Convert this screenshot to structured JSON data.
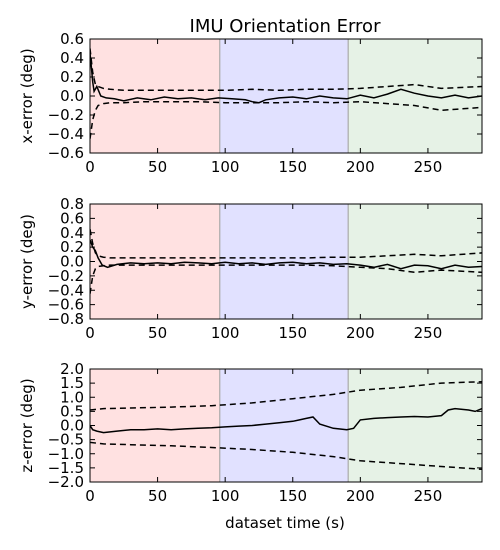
{
  "chart_data": {
    "type": "line",
    "title": "IMU Orientation Error",
    "xlabel": "dataset time (s)",
    "xlim": [
      0,
      290
    ],
    "xticks": [
      0,
      50,
      100,
      150,
      200,
      250
    ],
    "regions": [
      {
        "x0": 0,
        "x1": 96,
        "color": "#ffe1e1"
      },
      {
        "x0": 96,
        "x1": 191,
        "color": "#e1e1ff"
      },
      {
        "x0": 191,
        "x1": 290,
        "color": "#e6f2e6"
      }
    ],
    "region_boundary_color": "#aaaaaa",
    "line_color": "#000000",
    "panels": [
      {
        "ylabel": "x-error (deg)",
        "ylim": [
          -0.6,
          0.6
        ],
        "yticks": [
          -0.6,
          -0.4,
          -0.2,
          0.0,
          0.2,
          0.4,
          0.6
        ],
        "ytick_labels": [
          "−0.6",
          "−0.4",
          "−0.2",
          "0.0",
          "0.2",
          "0.4",
          "0.6"
        ],
        "series": [
          {
            "style": "solid",
            "x": [
              0,
              1,
              2,
              3,
              5,
              8,
              12,
              18,
              25,
              35,
              45,
              55,
              65,
              75,
              85,
              95,
              105,
              115,
              120,
              125,
              130,
              140,
              150,
              160,
              170,
              180,
              190,
              200,
              210,
              220,
              230,
              240,
              250,
              260,
              270,
              280,
              290
            ],
            "y": [
              0.45,
              0.3,
              0.15,
              0.05,
              0.1,
              0.0,
              -0.02,
              -0.03,
              -0.05,
              -0.02,
              -0.04,
              -0.01,
              -0.03,
              -0.02,
              -0.04,
              -0.02,
              -0.03,
              -0.04,
              -0.06,
              -0.07,
              -0.04,
              -0.02,
              -0.01,
              -0.03,
              0.0,
              -0.02,
              -0.03,
              0.01,
              -0.02,
              0.02,
              0.07,
              0.03,
              0.0,
              -0.02,
              0.01,
              -0.02,
              0.0
            ]
          },
          {
            "style": "dashed",
            "x": [
              0,
              2,
              4,
              6,
              10,
              15,
              25,
              40,
              60,
              80,
              100,
              120,
              140,
              160,
              180,
              200,
              220,
              240,
              260,
              290
            ],
            "y": [
              0.5,
              0.25,
              0.12,
              0.1,
              0.08,
              0.07,
              0.06,
              0.06,
              0.06,
              0.06,
              0.06,
              0.07,
              0.06,
              0.07,
              0.07,
              0.08,
              0.1,
              0.12,
              0.08,
              0.1
            ]
          },
          {
            "style": "dashed",
            "x": [
              0,
              2,
              4,
              6,
              10,
              15,
              25,
              40,
              60,
              80,
              100,
              120,
              140,
              160,
              180,
              200,
              220,
              240,
              260,
              290
            ],
            "y": [
              -0.45,
              -0.25,
              -0.15,
              -0.1,
              -0.08,
              -0.07,
              -0.07,
              -0.06,
              -0.06,
              -0.06,
              -0.07,
              -0.07,
              -0.07,
              -0.06,
              -0.07,
              -0.06,
              -0.08,
              -0.1,
              -0.15,
              -0.12
            ]
          }
        ]
      },
      {
        "ylabel": "y-error (deg)",
        "ylim": [
          -0.8,
          0.8
        ],
        "yticks": [
          -0.8,
          -0.6,
          -0.4,
          -0.2,
          0.0,
          0.2,
          0.4,
          0.6,
          0.8
        ],
        "ytick_labels": [
          "−0.8",
          "−0.6",
          "−0.4",
          "−0.2",
          "0.0",
          "0.2",
          "0.4",
          "0.6",
          "0.8"
        ],
        "series": [
          {
            "style": "solid",
            "x": [
              0,
              1,
              2,
              4,
              6,
              9,
              13,
              20,
              30,
              40,
              50,
              60,
              70,
              80,
              90,
              100,
              110,
              120,
              130,
              140,
              150,
              160,
              170,
              180,
              190,
              200,
              210,
              220,
              230,
              240,
              250,
              260,
              270,
              280,
              290
            ],
            "y": [
              0.3,
              0.25,
              0.2,
              0.15,
              0.05,
              -0.05,
              -0.08,
              -0.04,
              -0.02,
              -0.03,
              -0.02,
              -0.03,
              -0.01,
              -0.02,
              -0.03,
              -0.01,
              -0.03,
              -0.02,
              -0.04,
              -0.02,
              -0.01,
              -0.03,
              -0.02,
              -0.04,
              -0.03,
              -0.05,
              -0.08,
              -0.04,
              -0.1,
              -0.05,
              -0.06,
              -0.1,
              -0.05,
              -0.08,
              -0.07
            ]
          },
          {
            "style": "dashed",
            "x": [
              0,
              2,
              4,
              6,
              10,
              15,
              25,
              40,
              60,
              80,
              100,
              120,
              140,
              160,
              180,
              200,
              220,
              240,
              260,
              290
            ],
            "y": [
              0.45,
              0.25,
              0.12,
              0.08,
              0.06,
              0.05,
              0.05,
              0.05,
              0.05,
              0.05,
              0.05,
              0.05,
              0.05,
              0.05,
              0.06,
              0.06,
              0.08,
              0.1,
              0.08,
              0.12
            ]
          },
          {
            "style": "dashed",
            "x": [
              0,
              2,
              4,
              6,
              10,
              15,
              25,
              40,
              60,
              80,
              100,
              120,
              140,
              160,
              180,
              200,
              220,
              240,
              260,
              290
            ],
            "y": [
              -0.45,
              -0.2,
              -0.1,
              -0.07,
              -0.06,
              -0.05,
              -0.05,
              -0.05,
              -0.05,
              -0.05,
              -0.05,
              -0.05,
              -0.05,
              -0.05,
              -0.06,
              -0.08,
              -0.1,
              -0.15,
              -0.12,
              -0.15
            ]
          }
        ]
      },
      {
        "ylabel": "z-error (deg)",
        "ylim": [
          -2.0,
          2.0
        ],
        "yticks": [
          -2.0,
          -1.5,
          -1.0,
          -0.5,
          0.0,
          0.5,
          1.0,
          1.5,
          2.0
        ],
        "ytick_labels": [
          "−2.0",
          "−1.5",
          "−1.0",
          "−0.5",
          "0.0",
          "0.5",
          "1.0",
          "1.5",
          "2.0"
        ],
        "series": [
          {
            "style": "solid",
            "x": [
              0,
              2,
              5,
              10,
              20,
              30,
              40,
              50,
              60,
              70,
              80,
              90,
              100,
              110,
              120,
              130,
              140,
              150,
              155,
              160,
              165,
              170,
              180,
              190,
              195,
              200,
              210,
              220,
              230,
              240,
              250,
              260,
              265,
              270,
              280,
              285,
              290
            ],
            "y": [
              0.0,
              -0.15,
              -0.2,
              -0.25,
              -0.2,
              -0.15,
              -0.15,
              -0.12,
              -0.15,
              -0.12,
              -0.1,
              -0.08,
              -0.05,
              -0.02,
              0.0,
              0.05,
              0.1,
              0.15,
              0.2,
              0.25,
              0.3,
              0.05,
              -0.1,
              -0.15,
              -0.1,
              0.2,
              0.25,
              0.28,
              0.3,
              0.32,
              0.3,
              0.35,
              0.55,
              0.6,
              0.55,
              0.5,
              0.6
            ]
          },
          {
            "style": "dashed",
            "x": [
              0,
              10,
              30,
              60,
              90,
              120,
              150,
              180,
              200,
              230,
              260,
              290
            ],
            "y": [
              0.55,
              0.6,
              0.62,
              0.65,
              0.7,
              0.8,
              0.95,
              1.1,
              1.25,
              1.35,
              1.5,
              1.55
            ]
          },
          {
            "style": "dashed",
            "x": [
              0,
              10,
              30,
              60,
              90,
              120,
              150,
              180,
              200,
              230,
              260,
              290
            ],
            "y": [
              -0.6,
              -0.65,
              -0.68,
              -0.72,
              -0.78,
              -0.85,
              -0.95,
              -1.1,
              -1.25,
              -1.35,
              -1.45,
              -1.55
            ]
          }
        ]
      }
    ]
  }
}
